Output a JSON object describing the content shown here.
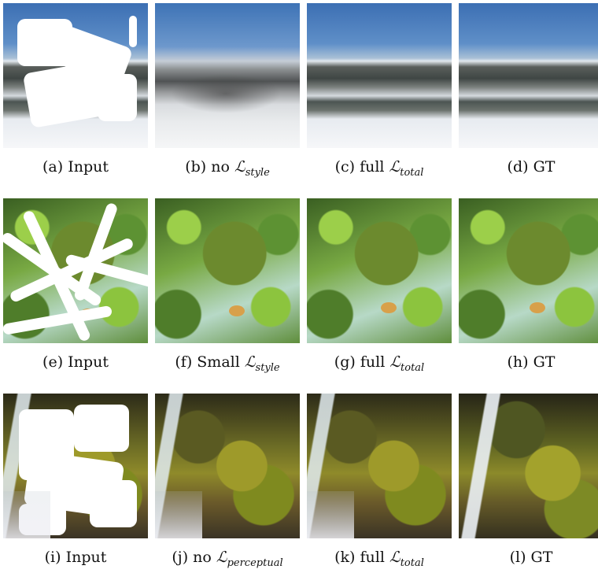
{
  "rows": [
    {
      "captions": [
        {
          "letter": "(a)",
          "text": "Input",
          "math": ""
        },
        {
          "letter": "(b)",
          "text": "no",
          "math": "style"
        },
        {
          "letter": "(c)",
          "text": "full",
          "math": "total"
        },
        {
          "letter": "(d)",
          "text": "GT",
          "math": ""
        }
      ]
    },
    {
      "captions": [
        {
          "letter": "(e)",
          "text": "Input",
          "math": ""
        },
        {
          "letter": "(f)",
          "text": "Small",
          "math": "style"
        },
        {
          "letter": "(g)",
          "text": "full",
          "math": "total"
        },
        {
          "letter": "(h)",
          "text": "GT",
          "math": ""
        }
      ]
    },
    {
      "captions": [
        {
          "letter": "(i)",
          "text": "Input",
          "math": ""
        },
        {
          "letter": "(j)",
          "text": "no",
          "math": "perceptual"
        },
        {
          "letter": "(k)",
          "text": "full",
          "math": "total"
        },
        {
          "letter": "(l)",
          "text": "GT",
          "math": ""
        }
      ]
    }
  ],
  "loss_symbol": "ℒ"
}
